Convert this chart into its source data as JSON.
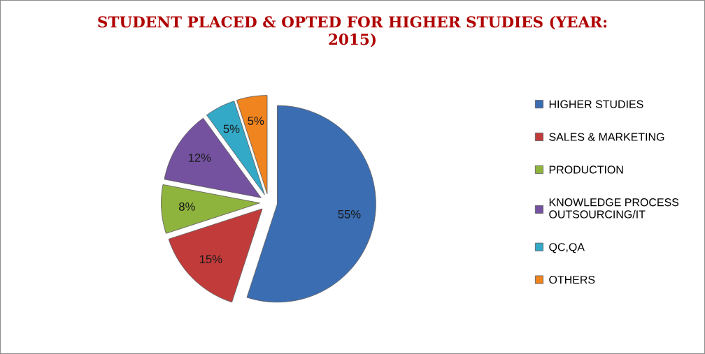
{
  "chart_data": {
    "type": "pie",
    "title": "STUDENT PLACED & OPTED FOR HIGHER STUDIES (YEAR:\n2015)",
    "categories": [
      "HIGHER STUDIES",
      "SALES & MARKETING",
      "PRODUCTION",
      "KNOWLEDGE PROCESS\nOUTSOURCING/IT",
      "QC,QA",
      "OTHERS"
    ],
    "values": [
      55,
      15,
      8,
      12,
      5,
      5
    ],
    "value_labels": [
      "55%",
      "15%",
      "8%",
      "12%",
      "5%",
      "5%"
    ],
    "colors": [
      "#3b6db2",
      "#c23b3b",
      "#8fb43e",
      "#7452a0",
      "#33a9c7",
      "#f0841f"
    ],
    "legend": "right"
  }
}
